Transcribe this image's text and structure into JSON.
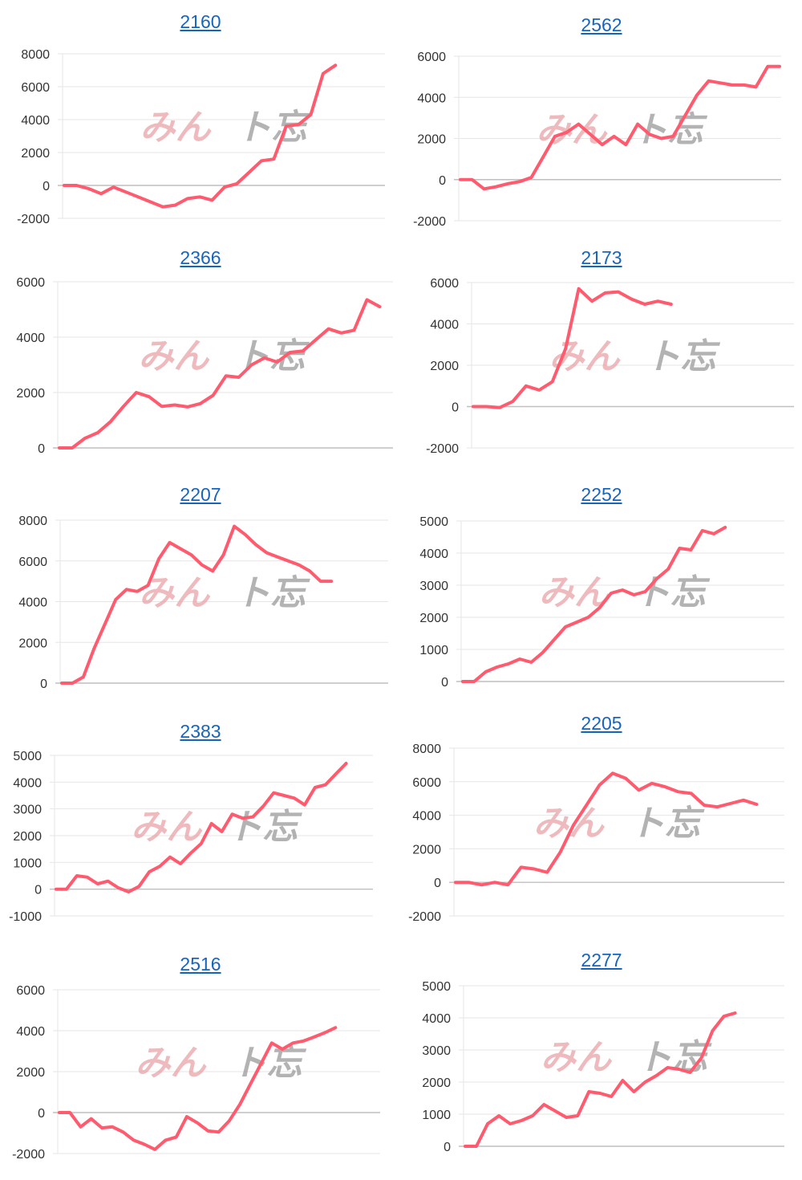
{
  "watermark": {
    "left_text": "みん",
    "right_text": "ト忘"
  },
  "colors": {
    "series": "#ff5a6e",
    "title_link": "#1565c0"
  },
  "chart_data": [
    {
      "type": "line",
      "title": "2160",
      "ylim": [
        -2000,
        8000
      ],
      "yticks": [
        -2000,
        0,
        2000,
        4000,
        6000,
        8000
      ],
      "y": [
        0,
        0,
        -200,
        -500,
        -100,
        -400,
        -700,
        -1000,
        -1300,
        -1200,
        -800,
        -700,
        -900,
        -100,
        100,
        800,
        1500,
        1600,
        3600,
        3700,
        4300,
        6800,
        7300
      ]
    },
    {
      "type": "line",
      "title": "2562",
      "ylim": [
        -2000,
        6000
      ],
      "yticks": [
        -2000,
        0,
        2000,
        4000,
        6000
      ],
      "y": [
        0,
        0,
        -450,
        -350,
        -200,
        -100,
        100,
        1100,
        2100,
        2300,
        2700,
        2200,
        1700,
        2100,
        1700,
        2700,
        2200,
        2000,
        2100,
        3100,
        4100,
        4800,
        4700,
        4600,
        4600,
        4500,
        5500,
        5500
      ]
    },
    {
      "type": "line",
      "title": "2366",
      "ylim": [
        0,
        6000
      ],
      "yticks": [
        0,
        2000,
        4000,
        6000
      ],
      "y": [
        0,
        0,
        350,
        550,
        950,
        1500,
        2000,
        1850,
        1500,
        1550,
        1480,
        1600,
        1900,
        2600,
        2550,
        3000,
        3250,
        3100,
        3450,
        3500,
        3900,
        4300,
        4150,
        4250,
        5350,
        5100
      ]
    },
    {
      "type": "line",
      "title": "2173",
      "ylim": [
        -2000,
        6000
      ],
      "yticks": [
        -2000,
        0,
        2000,
        4000,
        6000
      ],
      "y": [
        0,
        0,
        -50,
        250,
        1000,
        800,
        1200,
        2800,
        5700,
        5100,
        5500,
        5550,
        5200,
        4950,
        5100,
        4950
      ]
    },
    {
      "type": "line",
      "title": "2207",
      "ylim": [
        0,
        8000
      ],
      "yticks": [
        0,
        2000,
        4000,
        6000,
        8000
      ],
      "y": [
        0,
        0,
        300,
        1700,
        2900,
        4100,
        4600,
        4500,
        4800,
        6100,
        6900,
        6600,
        6300,
        5800,
        5500,
        6300,
        7700,
        7300,
        6800,
        6400,
        6200,
        6000,
        5800,
        5500,
        5000,
        5000
      ]
    },
    {
      "type": "line",
      "title": "2252",
      "ylim": [
        0,
        5000
      ],
      "yticks": [
        0,
        1000,
        2000,
        3000,
        4000,
        5000
      ],
      "y": [
        0,
        0,
        300,
        450,
        550,
        700,
        600,
        900,
        1300,
        1700,
        1850,
        2000,
        2300,
        2750,
        2850,
        2700,
        2800,
        3200,
        3500,
        4150,
        4100,
        4700,
        4600,
        4800
      ]
    },
    {
      "type": "line",
      "title": "2383",
      "ylim": [
        -1000,
        5000
      ],
      "yticks": [
        -1000,
        0,
        1000,
        2000,
        3000,
        4000,
        5000
      ],
      "y": [
        0,
        0,
        500,
        450,
        200,
        300,
        50,
        -100,
        100,
        650,
        850,
        1200,
        950,
        1350,
        1700,
        2450,
        2150,
        2800,
        2650,
        2700,
        3100,
        3600,
        3500,
        3400,
        3150,
        3800,
        3900,
        4300,
        4700
      ]
    },
    {
      "type": "line",
      "title": "2205",
      "ylim": [
        -2000,
        8000
      ],
      "yticks": [
        -2000,
        0,
        2000,
        4000,
        6000,
        8000
      ],
      "y": [
        0,
        0,
        -150,
        0,
        -150,
        900,
        800,
        600,
        1800,
        3400,
        4600,
        5800,
        6500,
        6200,
        5500,
        5900,
        5700,
        5400,
        5300,
        4600,
        4500,
        4700,
        4900,
        4650
      ]
    },
    {
      "type": "line",
      "title": "2516",
      "ylim": [
        -2000,
        6000
      ],
      "yticks": [
        -2000,
        0,
        2000,
        4000,
        6000
      ],
      "y": [
        0,
        0,
        -700,
        -300,
        -750,
        -700,
        -950,
        -1350,
        -1550,
        -1800,
        -1350,
        -1200,
        -200,
        -500,
        -900,
        -950,
        -400,
        400,
        1400,
        2400,
        3400,
        3100,
        3400,
        3500,
        3700,
        3900,
        4150
      ]
    },
    {
      "type": "line",
      "title": "2277",
      "ylim": [
        0,
        5000
      ],
      "yticks": [
        0,
        1000,
        2000,
        3000,
        4000,
        5000
      ],
      "y": [
        0,
        0,
        700,
        950,
        700,
        800,
        950,
        1300,
        1100,
        900,
        950,
        1700,
        1650,
        1550,
        2050,
        1700,
        2000,
        2200,
        2450,
        2400,
        2300,
        2750,
        3600,
        4050,
        4150
      ]
    }
  ]
}
